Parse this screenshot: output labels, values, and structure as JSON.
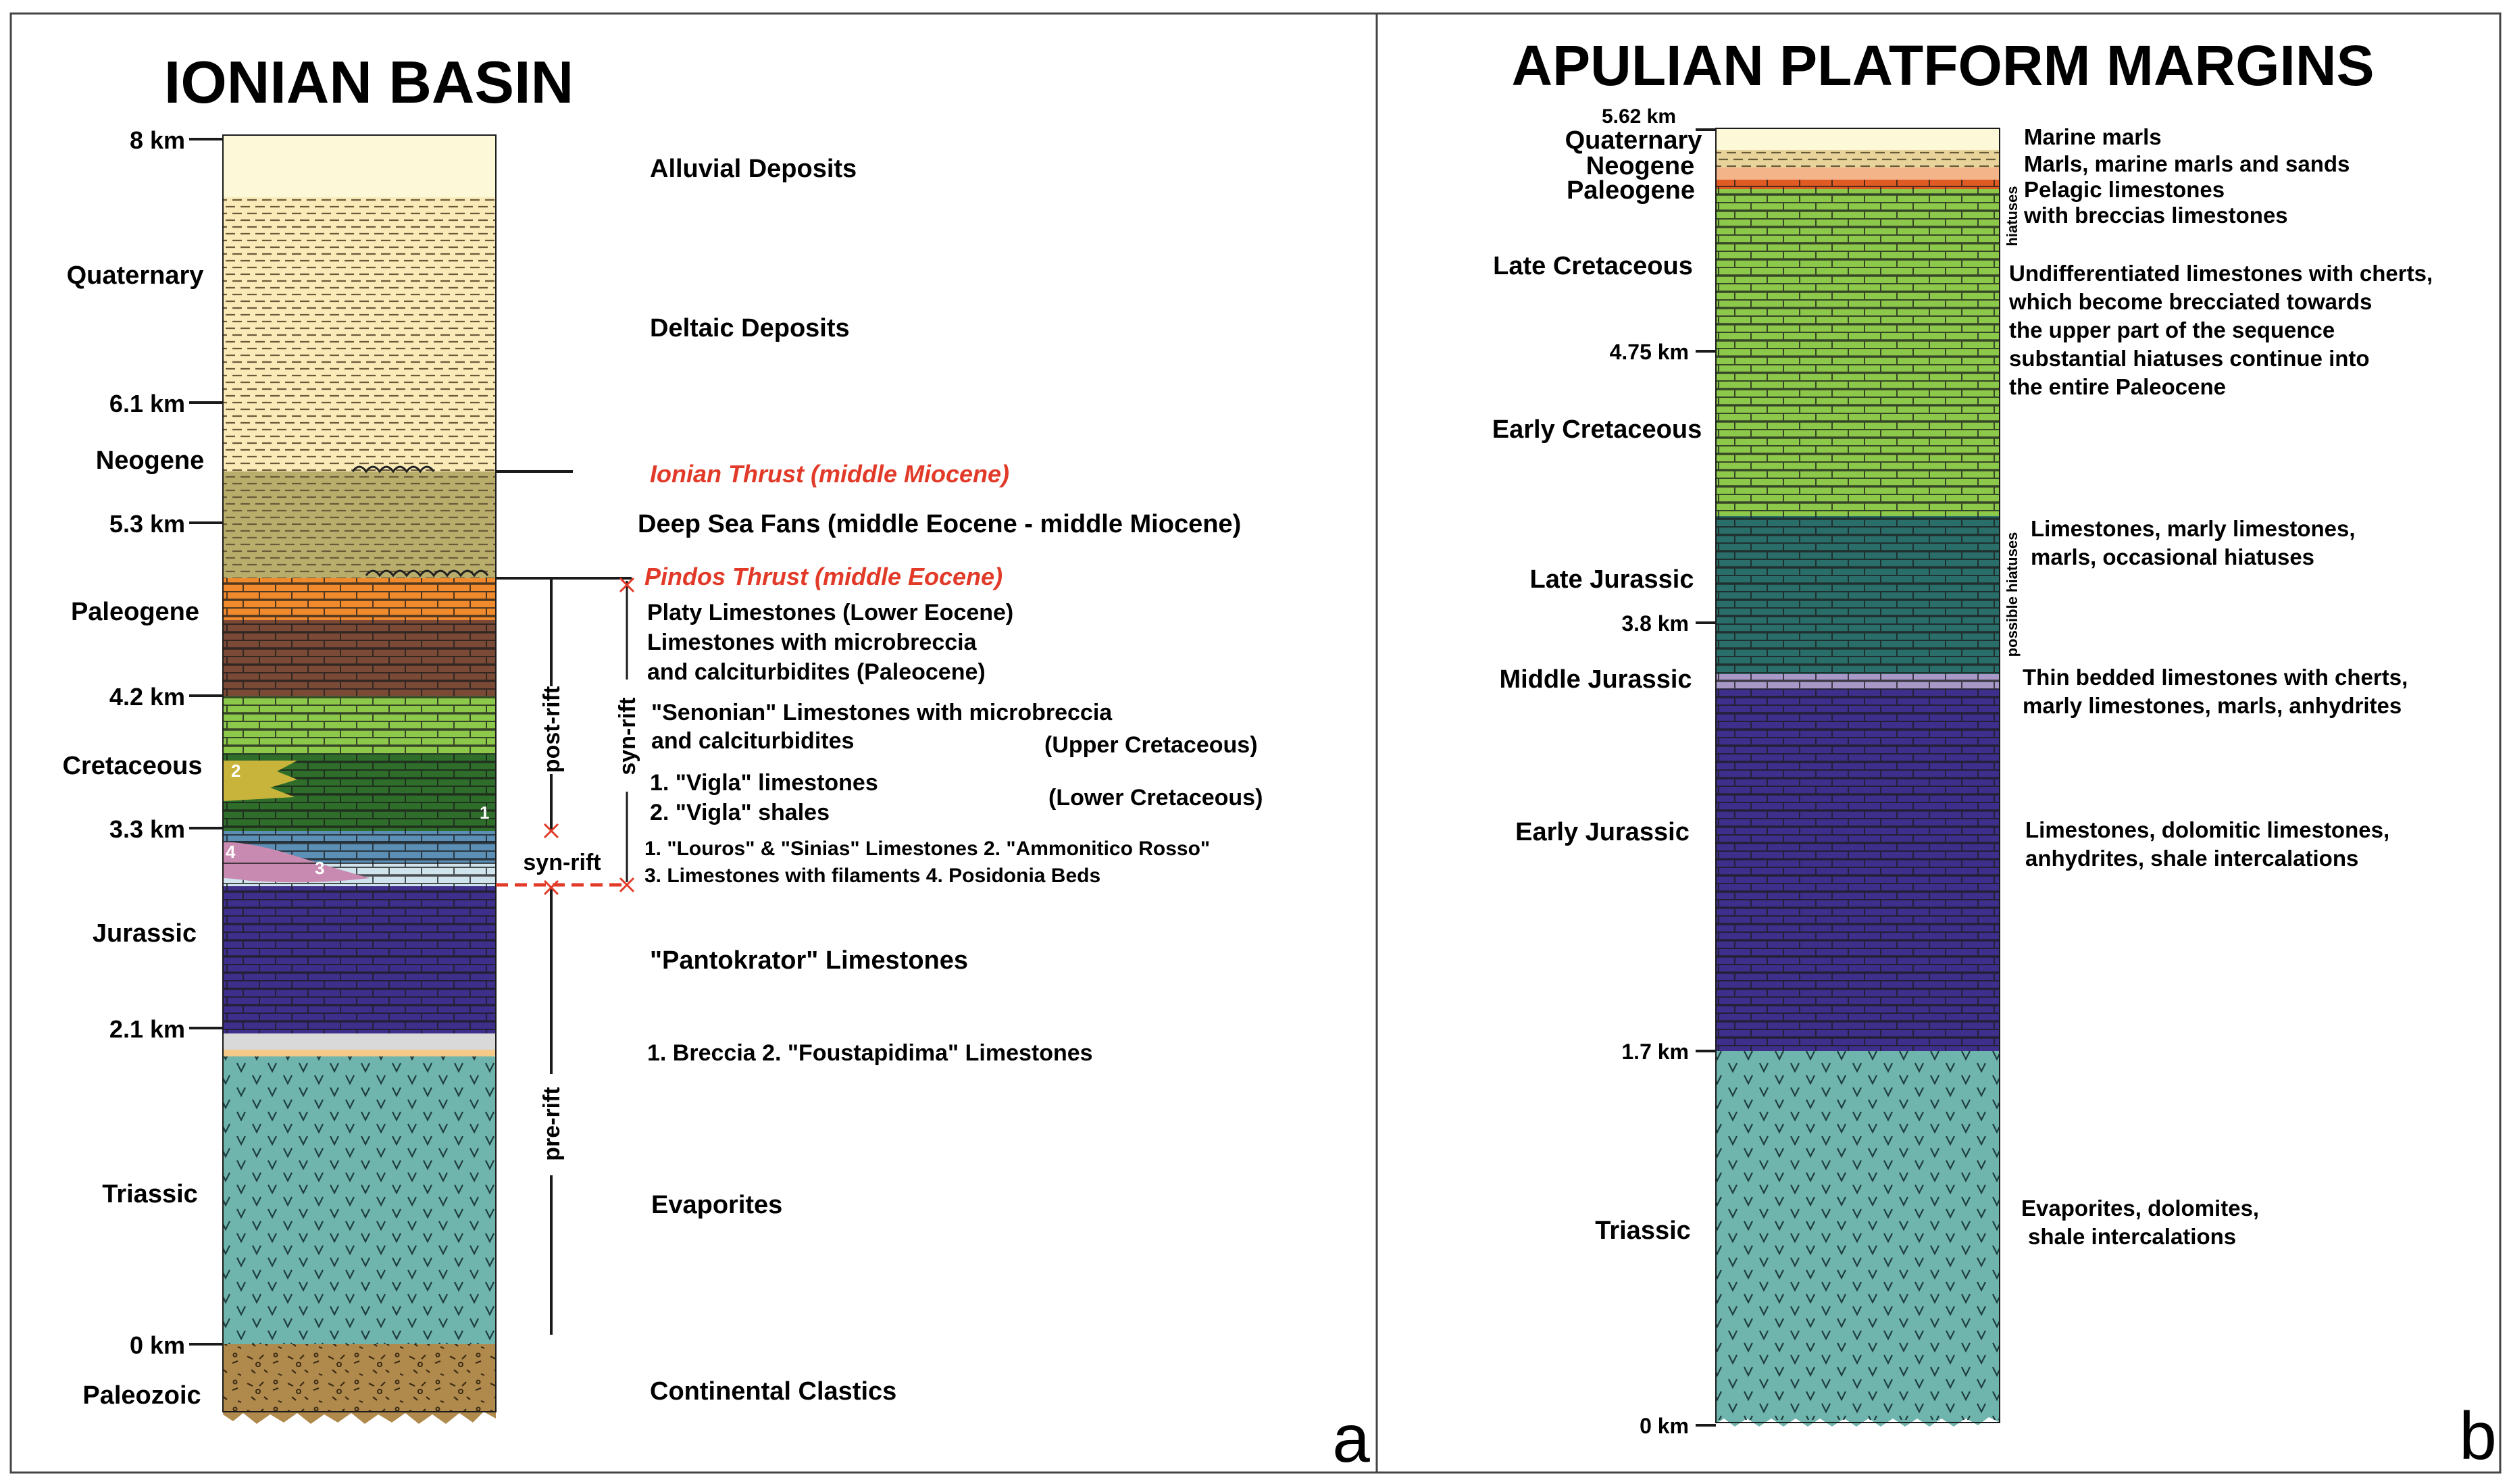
{
  "panel_a": {
    "title": "IONIAN BASIN",
    "letter": "a",
    "depth_labels": [
      "8 km",
      "6.1 km",
      "5.3 km",
      "4.2 km",
      "3.3 km",
      "2.1 km",
      "0 km"
    ],
    "period_labels": [
      "Quaternary",
      "Neogene",
      "Paleogene",
      "Cretaceous",
      "Jurassic",
      "Triassic",
      "Paleozoic"
    ],
    "thrusts": [
      "Ionian Thrust (middle Miocene)",
      "Pindos Thrust (middle Eocene)"
    ],
    "descriptions": {
      "alluvial": "Alluvial Deposits",
      "deltaic": "Deltaic Deposits",
      "deep_sea": "Deep Sea Fans (middle Eocene - middle Miocene)",
      "platy": "Platy Limestones (Lower Eocene)",
      "lime_micro_1": "Limestones with microbreccia",
      "lime_micro_2": "and calciturbidites (Paleocene)",
      "senonian_1": "\"Senonian\" Limestones with microbreccia",
      "senonian_2": "and calciturbidites",
      "upper_cret": "(Upper Cretaceous)",
      "vigla_1": "1. \"Vigla\" limestones",
      "vigla_2": "2. \"Vigla\" shales",
      "lower_cret": "(Lower Cretaceous)",
      "louros_1": "1. \"Louros\" & \"Sinias\" Limestones 2. \"Ammonitico Rosso\"",
      "louros_2": "3. Limestones with filaments  4. Posidonia Beds",
      "pantokrator": "\"Pantokrator\" Limestones",
      "breccia": "1. Breccia 2. \"Foustapidima\" Limestones",
      "evaporites": "Evaporites",
      "clastics": "Continental Clastics"
    },
    "rift_labels": [
      "post-rift",
      "syn-rift",
      "syn-rift",
      "pre-rift"
    ],
    "unit_numbers": [
      "2",
      "1",
      "4",
      "3"
    ]
  },
  "panel_b": {
    "title": "APULIAN PLATFORM MARGINS",
    "letter": "b",
    "depth_labels": [
      "5.62 km",
      "4.75 km",
      "3.8 km",
      "1.7 km",
      "0 km"
    ],
    "period_labels": [
      "Quaternary",
      "Neogene",
      "Paleogene",
      "Late Cretaceous",
      "Early Cretaceous",
      "Late Jurassic",
      "Middle Jurassic",
      "Early Jurassic",
      "Triassic"
    ],
    "descriptions": {
      "d1": "Marine marls",
      "d2": "Marls, marine marls and sands",
      "d3": "Pelagic limestones",
      "d4": "with breccias limestones",
      "d5": "Undifferentiated limestones with cherts,",
      "d6": "which become brecciated towards",
      "d7": "the upper part of the sequence",
      "d8": "substantial hiatuses continue into",
      "d9": "the entire Paleocene",
      "d10": "Limestones, marly limestones,",
      "d11": "marls, occasional hiatuses",
      "d12": "Thin bedded limestones with cherts,",
      "d13": "marly limestones, marls, anhydrites",
      "d14": "Limestones, dolomitic limestones,",
      "d15": "anhydrites, shale intercalations",
      "d16": "Evaporites, dolomites,",
      "d17": "shale intercalations"
    },
    "side_notes": [
      "hiatuses",
      "possible hiatuses"
    ]
  },
  "colors": {
    "alluvial": "#fdf8d8",
    "deltaic": "#faeab8",
    "deep_sea": "#b9ad6c",
    "platy": "#f08a2c",
    "paleocene": "#7a4a36",
    "upper_cret": "#8cc84a",
    "lower_cret": "#2e6e2a",
    "jurassic_blue": "#5b8fb5",
    "jurassic_purple": "#3e2f8c",
    "evaporite": "#6fb4ad",
    "paleozoic": "#b08a4c",
    "thrust_red": "#e23a28",
    "apulia_green": "#8cc84a",
    "apulia_teal": "#2a6e6a",
    "apulia_lilac": "#a898c8"
  }
}
